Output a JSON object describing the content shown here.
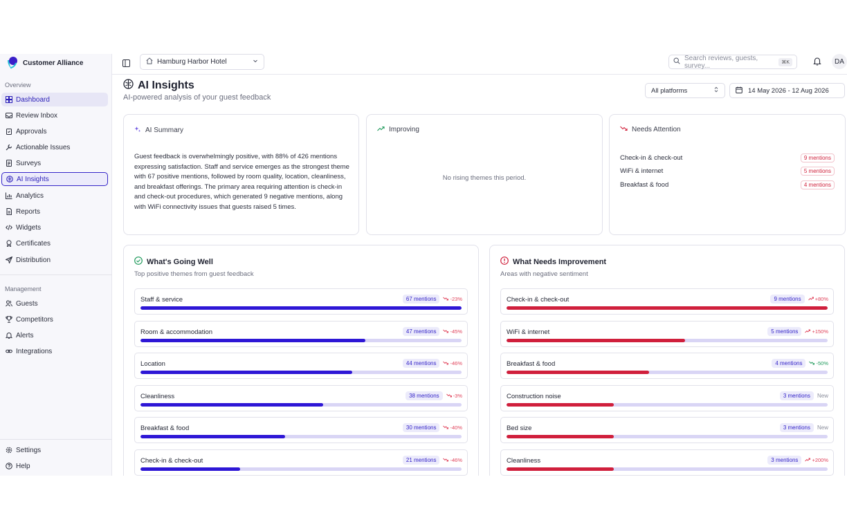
{
  "brand": {
    "name": "Customer Alliance"
  },
  "sidebar": {
    "overview_label": "Overview",
    "management_label": "Management",
    "items": [
      {
        "label": "Dashboard",
        "icon": "dashboard-icon"
      },
      {
        "label": "Review Inbox",
        "icon": "inbox-icon"
      },
      {
        "label": "Approvals",
        "icon": "clipboard-icon"
      },
      {
        "label": "Actionable Issues",
        "icon": "wrench-icon"
      },
      {
        "label": "Surveys",
        "icon": "survey-icon"
      },
      {
        "label": "AI Insights",
        "icon": "brain-icon"
      },
      {
        "label": "Analytics",
        "icon": "chart-icon"
      },
      {
        "label": "Reports",
        "icon": "document-icon"
      },
      {
        "label": "Widgets",
        "icon": "code-icon"
      },
      {
        "label": "Certificates",
        "icon": "award-icon"
      },
      {
        "label": "Distribution",
        "icon": "send-icon"
      }
    ],
    "management_items": [
      {
        "label": "Guests",
        "icon": "users-icon"
      },
      {
        "label": "Competitors",
        "icon": "trophy-icon"
      },
      {
        "label": "Alerts",
        "icon": "bell-icon"
      },
      {
        "label": "Integrations",
        "icon": "link-icon"
      }
    ],
    "footer_items": [
      {
        "label": "Settings",
        "icon": "gear-icon"
      },
      {
        "label": "Help",
        "icon": "help-icon"
      }
    ]
  },
  "topbar": {
    "hotel": "Hamburg Harbor Hotel",
    "search_placeholder": "Search reviews, guests, survey...",
    "search_shortcut": "⌘K",
    "avatar_initials": "DA"
  },
  "page": {
    "title": "AI Insights",
    "subtitle": "AI-powered analysis of your guest feedback",
    "platform_filter": "All platforms",
    "date_range": "14 May 2026 - 12 Aug 2026"
  },
  "summary": {
    "title": "AI Summary",
    "text": "Guest feedback is overwhelmingly positive, with 88% of 426 mentions expressing satisfaction. Staff and service emerges as the strongest theme with 67 positive mentions, followed by room quality, location, cleanliness, and breakfast offerings. The primary area requiring attention is check-in and check-out procedures, which generated 9 negative mentions, along with WiFi connectivity issues that guests raised 5 times."
  },
  "improving": {
    "title": "Improving",
    "empty": "No rising themes this period."
  },
  "attention": {
    "title": "Needs Attention",
    "items": [
      {
        "name": "Check-in & check-out",
        "mentions": "9 mentions"
      },
      {
        "name": "WiFi & internet",
        "mentions": "5 mentions"
      },
      {
        "name": "Breakfast & food",
        "mentions": "4 mentions"
      }
    ]
  },
  "going_well": {
    "title": "What's Going Well",
    "subtitle": "Top positive themes from guest feedback",
    "bar_color": "#2e17d6",
    "themes": [
      {
        "name": "Staff & service",
        "mentions": "67 mentions",
        "trend": "-23%",
        "trend_dir": "down",
        "level": 1.0
      },
      {
        "name": "Room & accommodation",
        "mentions": "47 mentions",
        "trend": "-45%",
        "trend_dir": "down",
        "level": 0.7
      },
      {
        "name": "Location",
        "mentions": "44 mentions",
        "trend": "-46%",
        "trend_dir": "down",
        "level": 0.66
      },
      {
        "name": "Cleanliness",
        "mentions": "38 mentions",
        "trend": "-3%",
        "trend_dir": "down",
        "level": 0.57
      },
      {
        "name": "Breakfast & food",
        "mentions": "30 mentions",
        "trend": "-40%",
        "trend_dir": "down",
        "level": 0.45
      },
      {
        "name": "Check-in & check-out",
        "mentions": "21 mentions",
        "trend": "-46%",
        "trend_dir": "down",
        "level": 0.31
      }
    ]
  },
  "needs_improvement": {
    "title": "What Needs Improvement",
    "subtitle": "Areas with negative sentiment",
    "bar_color": "#d01f3c",
    "themes": [
      {
        "name": "Check-in & check-out",
        "mentions": "9 mentions",
        "trend": "+80%",
        "trend_dir": "up-bad",
        "level": 1.0
      },
      {
        "name": "WiFi & internet",
        "mentions": "5 mentions",
        "trend": "+150%",
        "trend_dir": "up-bad",
        "level": 0.556
      },
      {
        "name": "Breakfast & food",
        "mentions": "4 mentions",
        "trend": "-50%",
        "trend_dir": "down-good",
        "level": 0.444
      },
      {
        "name": "Construction noise",
        "mentions": "3 mentions",
        "trend": "New",
        "trend_dir": "new",
        "level": 0.333
      },
      {
        "name": "Bed size",
        "mentions": "3 mentions",
        "trend": "New",
        "trend_dir": "new",
        "level": 0.333
      },
      {
        "name": "Cleanliness",
        "mentions": "3 mentions",
        "trend": "+200%",
        "trend_dir": "up-bad",
        "level": 0.333
      }
    ]
  }
}
